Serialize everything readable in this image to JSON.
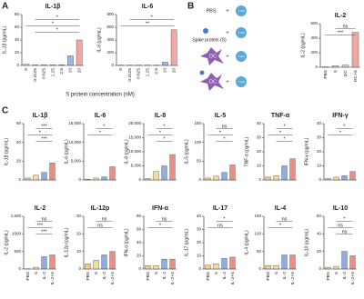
{
  "panels": [
    "A",
    "B",
    "C"
  ],
  "diagram": {
    "pbs": "PBS",
    "spike": "Spike protein (S)",
    "dc_labels": [
      "DC",
      "DC"
    ],
    "tcell_labels": [
      "T cell",
      "T cell",
      "T cell",
      "T cell"
    ]
  },
  "chart_data": [
    {
      "type": "bar",
      "title": "IL-1β",
      "y_label": "IL-1β (pg/mL)",
      "x_label": "S protein concentration (nM)",
      "categories": [
        "0",
        "0.3125",
        "0.625",
        "1.25",
        "2.5",
        "10",
        "20"
      ],
      "values": [
        2,
        1,
        1,
        1,
        1,
        15,
        40
      ],
      "colors": [
        "#f4b6b6",
        "#f7c873",
        "#f2e27a",
        "#a9d9a0",
        "#9cc9e6",
        "#7f9be0",
        "#f08a80"
      ],
      "ylim": [
        0,
        80
      ],
      "yticks": [
        0,
        20,
        40,
        60,
        80
      ],
      "annotations": [
        "*",
        "*",
        "*"
      ]
    },
    {
      "type": "bar",
      "title": "IL-6",
      "y_label": "IL-6 (pg/mL)",
      "categories": [
        "0",
        "0.3125",
        "0.625",
        "1.25",
        "2.5",
        "10",
        "20"
      ],
      "values": [
        5,
        5,
        5,
        5,
        5,
        50,
        560
      ],
      "colors": [
        "#f4b6b6",
        "#f7c873",
        "#f2e27a",
        "#a9d9a0",
        "#9cc9e6",
        "#7f9be0",
        "#f08a80"
      ],
      "ylim": [
        0,
        800
      ],
      "yticks": [
        0,
        200,
        400,
        600,
        800
      ],
      "annotations": [
        "*",
        "**"
      ]
    },
    {
      "type": "bar",
      "title": "IL-2",
      "y_label": "IL-2 (pg/mL)",
      "categories": [
        "PBS",
        "S",
        "DC",
        "DC+S"
      ],
      "values": [
        5,
        20,
        30,
        480
      ],
      "colors": [
        "#f7c873",
        "#f4b183",
        "#9cc9e6",
        "#f08a80"
      ],
      "ylim": [
        0,
        600
      ],
      "yticks": [
        0,
        200,
        400,
        600
      ],
      "annotations": [
        "ns",
        "***"
      ]
    },
    {
      "type": "bar",
      "title": "IL-1β",
      "y_label": "IL-1β (pg/mL)",
      "values": [
        2,
        5,
        8,
        18
      ],
      "colors": [
        "#f7b26b",
        "#f4d06f",
        "#6d8fd6",
        "#f0645a"
      ],
      "ylim": [
        0,
        60
      ],
      "yticks": [
        0,
        20,
        40,
        60
      ],
      "annotations": [
        "***",
        "*",
        "***"
      ]
    },
    {
      "type": "bar",
      "title": "IL-6",
      "y_label": "IL-6 (pg/mL)",
      "values": [
        200,
        500,
        800,
        3500
      ],
      "colors": [
        "#f7b26b",
        "#f4d06f",
        "#6d8fd6",
        "#f0645a"
      ],
      "ylim": [
        0,
        15000
      ],
      "yticks": [
        0,
        {
          "value": 5000,
          "label": "5,000"
        },
        {
          "value": 10000,
          "label": "10,000"
        },
        {
          "value": 15000,
          "label": "15,000"
        }
      ],
      "annotations": [
        "*",
        "*"
      ]
    },
    {
      "type": "bar",
      "title": "IL-8",
      "y_label": "IL-8 (pg/mL)",
      "values": [
        500,
        3000,
        5000,
        9000
      ],
      "colors": [
        "#f7b26b",
        "#f4d06f",
        "#6d8fd6",
        "#f0645a"
      ],
      "ylim": [
        0,
        20000
      ],
      "yticks": [
        0,
        {
          "value": 5000,
          "label": "5,000"
        },
        {
          "value": 10000,
          "label": "10,000"
        },
        {
          "value": 15000,
          "label": "15,000"
        },
        {
          "value": 20000,
          "label": "20,000"
        }
      ],
      "annotations": [
        "*",
        "*",
        "*"
      ]
    },
    {
      "type": "bar",
      "title": "IL-5",
      "y_label": "IL-5 (pg/mL)",
      "values": [
        5,
        10,
        20,
        40
      ],
      "colors": [
        "#f7b26b",
        "#f4d06f",
        "#6d8fd6",
        "#f0645a"
      ],
      "ylim": [
        0,
        150
      ],
      "yticks": [
        0,
        50,
        100,
        150
      ],
      "annotations": [
        "ns",
        "*",
        "*"
      ]
    },
    {
      "type": "bar",
      "title": "TNF-α",
      "y_label": "TNF-α (pg/mL)",
      "values": [
        2,
        3,
        10,
        15
      ],
      "colors": [
        "#f7b26b",
        "#f4d06f",
        "#6d8fd6",
        "#f0645a"
      ],
      "ylim": [
        0,
        40
      ],
      "yticks": [
        0,
        10,
        20,
        30,
        40
      ],
      "annotations": [
        "*",
        "*",
        "*"
      ]
    },
    {
      "type": "bar",
      "title": "IFN-γ",
      "y_label": "IFN-γ (pg/mL)",
      "values": [
        1,
        2,
        3,
        6
      ],
      "colors": [
        "#f7b26b",
        "#f4d06f",
        "#6d8fd6",
        "#f0645a"
      ],
      "ylim": [
        0,
        40
      ],
      "yticks": [
        0,
        10,
        20,
        30,
        40
      ],
      "annotations": [
        "*",
        "*"
      ]
    },
    {
      "type": "bar",
      "title": "IL-2",
      "y_label": "IL-2 (pg/mL)",
      "categories": [
        "PBS",
        "S",
        "IL-2",
        "IL-2+S"
      ],
      "values": [
        5,
        50,
        350,
        400
      ],
      "colors": [
        "#f7b26b",
        "#f4d06f",
        "#6d8fd6",
        "#f0645a"
      ],
      "ylim": [
        0,
        1500
      ],
      "yticks": [
        0,
        500,
        1000,
        {
          "value": 1500,
          "label": "1,500"
        }
      ],
      "annotations": [
        "ns",
        "***",
        "***"
      ]
    },
    {
      "type": "bar",
      "title": "IL-12p",
      "y_label": "IL-12p (pg/mL)",
      "categories": [
        "PBS",
        "S",
        "IL-2",
        "IL-2+S"
      ],
      "values": [
        3,
        5,
        8,
        10
      ],
      "colors": [
        "#f7b26b",
        "#f4d06f",
        "#6d8fd6",
        "#f0645a"
      ],
      "ylim": [
        0,
        30
      ],
      "yticks": [
        0,
        10,
        20,
        30
      ],
      "annotations": [
        "ns",
        "ns"
      ]
    },
    {
      "type": "bar",
      "title": "IFN-α",
      "y_label": "IFN-α (pg/mL)",
      "categories": [
        "PBS",
        "S",
        "IL-2",
        "IL-2+S"
      ],
      "values": [
        5,
        5,
        15,
        15
      ],
      "colors": [
        "#f7b26b",
        "#f4d06f",
        "#6d8fd6",
        "#f0645a"
      ],
      "ylim": [
        0,
        80
      ],
      "yticks": [
        0,
        20,
        40,
        60,
        80
      ],
      "annotations": [
        "ns",
        "*"
      ]
    },
    {
      "type": "bar",
      "title": "IL-17",
      "y_label": "IL-17 (pg/mL)",
      "categories": [
        "PBS",
        "S",
        "IL-2",
        "IL-2+S"
      ],
      "values": [
        3,
        4,
        8,
        9
      ],
      "colors": [
        "#f7b26b",
        "#f4d06f",
        "#6d8fd6",
        "#f0645a"
      ],
      "ylim": [
        0,
        40
      ],
      "yticks": [
        0,
        10,
        20,
        30,
        40
      ],
      "annotations": [
        "*",
        "ns"
      ]
    },
    {
      "type": "bar",
      "title": "IL-4",
      "y_label": "IL-4 (pg/mL)",
      "categories": [
        "PBS",
        "S",
        "IL-2",
        "IL-2+S"
      ],
      "values": [
        10,
        10,
        40,
        40
      ],
      "colors": [
        "#f7b26b",
        "#f4d06f",
        "#6d8fd6",
        "#f0645a"
      ],
      "ylim": [
        0,
        150
      ],
      "yticks": [
        0,
        50,
        100,
        150
      ],
      "annotations": [
        "ns",
        "*"
      ]
    },
    {
      "type": "bar",
      "title": "IL-10",
      "y_label": "IL-10 (pg/mL)",
      "categories": [
        "PBS",
        "S",
        "IL-2",
        "IL-2+S"
      ],
      "values": [
        2,
        3,
        20,
        15
      ],
      "colors": [
        "#f7b26b",
        "#f4d06f",
        "#6d8fd6",
        "#f0645a"
      ],
      "ylim": [
        0,
        60
      ],
      "yticks": [
        0,
        20,
        40,
        60
      ],
      "annotations": [
        "*",
        "ns",
        "ns"
      ]
    }
  ]
}
